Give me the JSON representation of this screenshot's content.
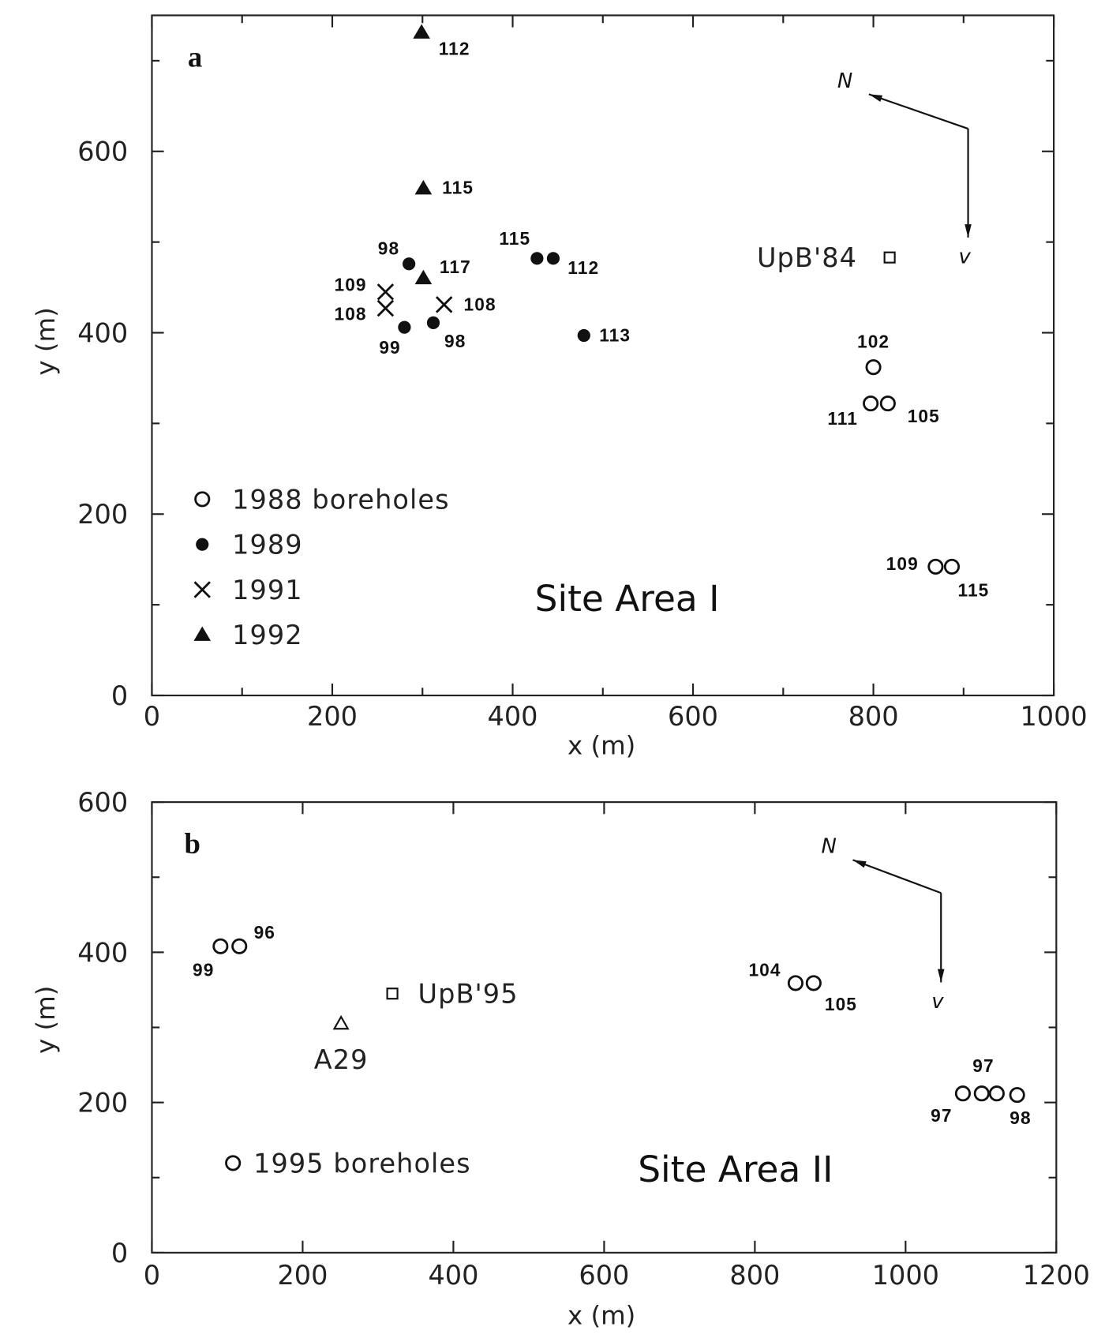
{
  "chart_data": [
    {
      "type": "scatter",
      "panel_label": "a",
      "xlabel": "x (m)",
      "ylabel": "y (m)",
      "xlim": [
        0,
        1000
      ],
      "ylim": [
        0,
        750
      ],
      "xticks": [
        0,
        200,
        400,
        600,
        800,
        1000
      ],
      "yticks": [
        0,
        200,
        400,
        600
      ],
      "grid": false,
      "legend_placement": "bottom-left",
      "annotation": "Site Area I",
      "north_label": "N",
      "flow_label": "v",
      "north_arrow": {
        "corner": [
          905,
          625
        ],
        "north_tip": [
          795,
          663
        ],
        "flow_tip": [
          905,
          505
        ]
      },
      "reference": {
        "label": "UpB'84",
        "marker": "open-square",
        "x": 818,
        "y": 483
      },
      "series": [
        {
          "name": "1988 boreholes",
          "marker": "open-circle",
          "points": [
            {
              "x": 800,
              "y": 362,
              "label": "102"
            },
            {
              "x": 797,
              "y": 322,
              "label": "111"
            },
            {
              "x": 816,
              "y": 322,
              "label": "105"
            },
            {
              "x": 869,
              "y": 142,
              "label": "109"
            },
            {
              "x": 887,
              "y": 142,
              "label": "115"
            }
          ]
        },
        {
          "name": "1989",
          "marker": "filled-circle",
          "points": [
            {
              "x": 285,
              "y": 476,
              "label": "98"
            },
            {
              "x": 427,
              "y": 482,
              "label": "115"
            },
            {
              "x": 445,
              "y": 482,
              "label": "112"
            },
            {
              "x": 280,
              "y": 406,
              "label": "99"
            },
            {
              "x": 312,
              "y": 411,
              "label": "98"
            },
            {
              "x": 479,
              "y": 397,
              "label": "113"
            }
          ]
        },
        {
          "name": "1991",
          "marker": "cross",
          "points": [
            {
              "x": 259,
              "y": 445,
              "label": "109"
            },
            {
              "x": 259,
              "y": 427,
              "label": "108"
            },
            {
              "x": 324,
              "y": 431,
              "label": "108"
            }
          ]
        },
        {
          "name": "1992",
          "marker": "filled-triangle",
          "points": [
            {
              "x": 299,
              "y": 731,
              "label": "112"
            },
            {
              "x": 301,
              "y": 559,
              "label": "115"
            },
            {
              "x": 301,
              "y": 460,
              "label": "117"
            }
          ]
        }
      ]
    },
    {
      "type": "scatter",
      "panel_label": "b",
      "xlabel": "x (m)",
      "ylabel": "y (m)",
      "xlim": [
        0,
        1200
      ],
      "ylim": [
        0,
        600
      ],
      "xticks": [
        0,
        200,
        400,
        600,
        800,
        1000,
        1200
      ],
      "yticks": [
        0,
        200,
        400,
        600
      ],
      "grid": false,
      "legend_placement": "bottom-left",
      "annotation": "Site Area II",
      "north_label": "N",
      "flow_label": "v",
      "north_arrow": {
        "corner": [
          1047,
          479
        ],
        "north_tip": [
          930,
          523
        ],
        "flow_tip": [
          1047,
          360
        ]
      },
      "references": [
        {
          "label": "UpB'95",
          "marker": "open-square",
          "x": 319,
          "y": 345
        },
        {
          "label": "A29",
          "marker": "open-triangle",
          "x": 251,
          "y": 305
        }
      ],
      "series": [
        {
          "name": "1995 boreholes",
          "marker": "open-circle",
          "points": [
            {
              "x": 91,
              "y": 408,
              "label": "99"
            },
            {
              "x": 116,
              "y": 408,
              "label": "96"
            },
            {
              "x": 854,
              "y": 359,
              "label": "104"
            },
            {
              "x": 878,
              "y": 359,
              "label": "105"
            },
            {
              "x": 1076,
              "y": 212,
              "label": "97"
            },
            {
              "x": 1101,
              "y": 212,
              "label": "97"
            },
            {
              "x": 1121,
              "y": 212,
              "label": ""
            },
            {
              "x": 1148,
              "y": 210,
              "label": "98"
            }
          ]
        }
      ]
    }
  ]
}
